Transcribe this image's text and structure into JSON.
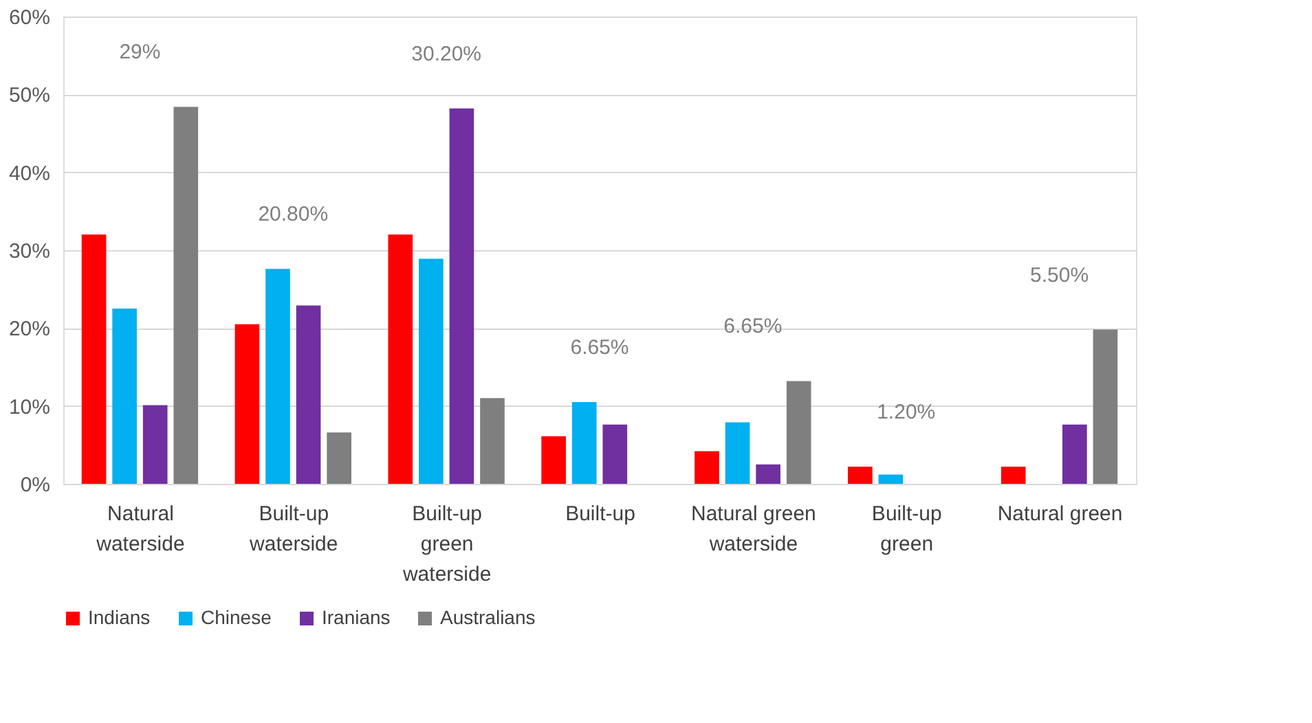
{
  "chart_data": {
    "type": "bar",
    "categories": [
      "Natural waterside",
      "Built-up waterside",
      "Built-up green waterside",
      "Built-up",
      "Natural green waterside",
      "Built-up green",
      "Natural green"
    ],
    "series": [
      {
        "name": "Indians",
        "color": "#ff0000",
        "values": [
          32.0,
          20.5,
          32.0,
          6.1,
          4.2,
          2.2,
          2.2
        ]
      },
      {
        "name": "Chinese",
        "color": "#00b0f0",
        "values": [
          22.5,
          27.6,
          28.9,
          10.5,
          7.9,
          1.2,
          null
        ]
      },
      {
        "name": "Iranians",
        "color": "#7030a0",
        "values": [
          10.1,
          22.9,
          48.2,
          7.6,
          2.5,
          null,
          7.6
        ]
      },
      {
        "name": "Australians",
        "color": "#7f7f7f",
        "values": [
          48.4,
          6.6,
          11.0,
          null,
          13.2,
          null,
          19.8
        ]
      }
    ],
    "ylim": [
      0,
      60
    ],
    "yticks": [
      {
        "value": 0,
        "label": "0%"
      },
      {
        "value": 10,
        "label": "10%"
      },
      {
        "value": 20,
        "label": "20%"
      },
      {
        "value": 30,
        "label": "30%"
      },
      {
        "value": 40,
        "label": "40%"
      },
      {
        "value": 50,
        "label": "50%"
      },
      {
        "value": 60,
        "label": "60%"
      }
    ],
    "annotations": [
      "29%",
      "20.80%",
      "30.20%",
      "6.65%",
      "6.65%",
      "1.20%",
      "5.50%"
    ],
    "grid": "y",
    "legend": "bottom"
  }
}
